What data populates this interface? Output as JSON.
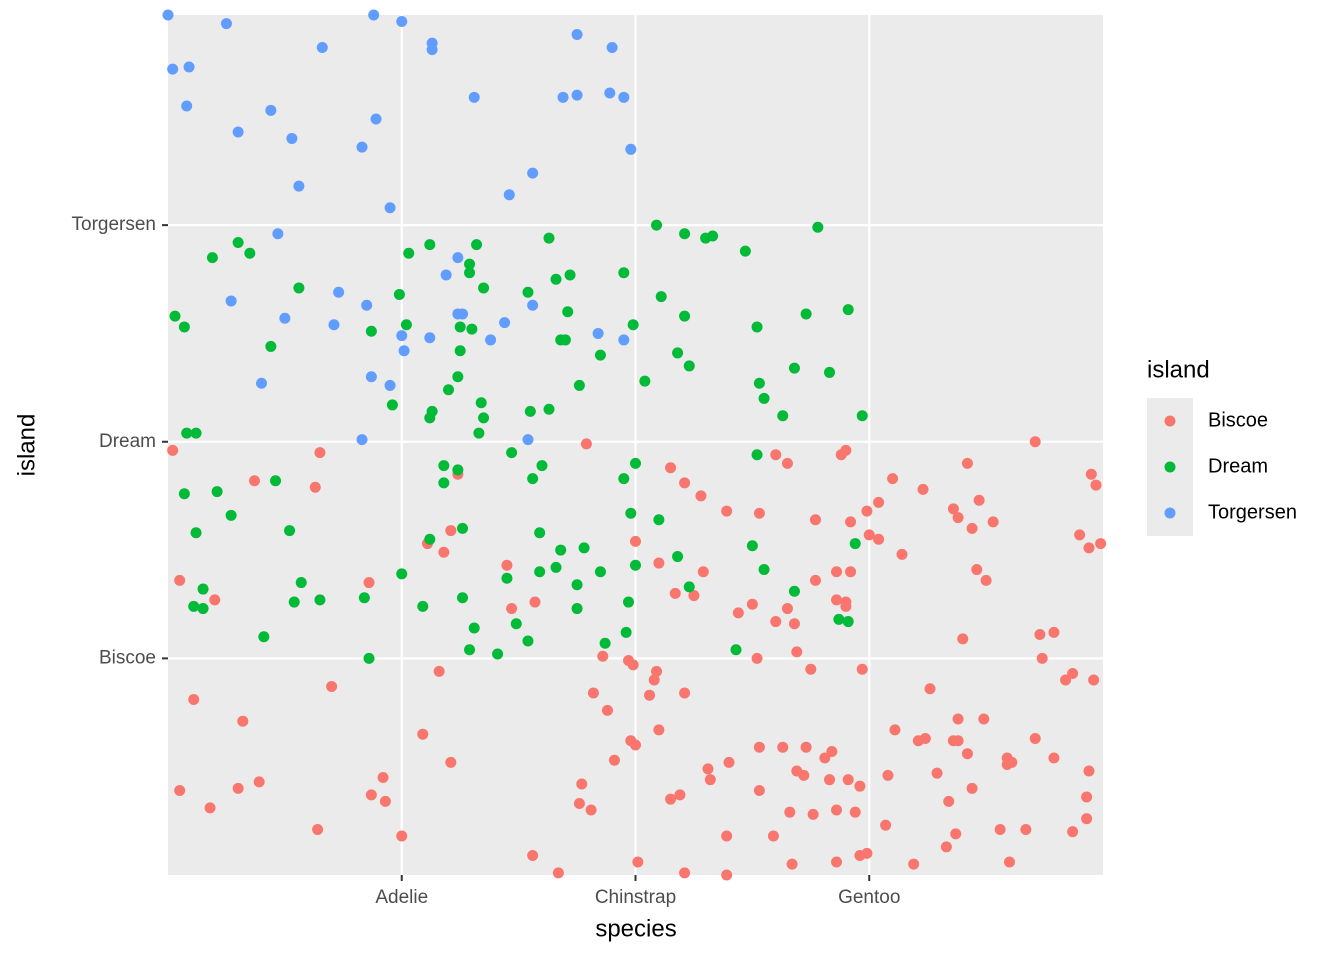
{
  "chart_data": {
    "type": "scatter",
    "x_label": "species",
    "y_label": "island",
    "xlim": [
      0,
      4
    ],
    "ylim": [
      0,
      3.97
    ],
    "xticks": [
      {
        "value": 1,
        "label": "Adelie"
      },
      {
        "value": 2,
        "label": "Chinstrap"
      },
      {
        "value": 3,
        "label": "Gentoo"
      }
    ],
    "yticks": [
      {
        "value": 1,
        "label": "Biscoe"
      },
      {
        "value": 2,
        "label": "Dream"
      },
      {
        "value": 3,
        "label": "Torgersen"
      }
    ],
    "grid": true,
    "legend_title": "island",
    "legend_position": "right",
    "series": [
      {
        "name": "Biscoe",
        "color": "#F8766D",
        "x": [
          3.71,
          0.02,
          0.65,
          1.79,
          2.9,
          2.88,
          2.6,
          2.65,
          2.15,
          3.42,
          3.95,
          3.97,
          0.37,
          0.63,
          1.24,
          2.21,
          3.1,
          3.23,
          2.28,
          3.47,
          3.04,
          3.36,
          2.39,
          2.53,
          2.99,
          3.38,
          2.77,
          2.92,
          3.53,
          3.44,
          1.21,
          3.0,
          3.04,
          1.11,
          1.18,
          3.9,
          3.94,
          3.99,
          3.14,
          2.0,
          2.1,
          1.45,
          2.29,
          3.46,
          3.5,
          2.86,
          2.92,
          0.05,
          0.86,
          2.77,
          2.17,
          2.25,
          2.5,
          2.86,
          2.9,
          2.9,
          0.2,
          1.57,
          1.47,
          2.44,
          2.65,
          2.6,
          2.68,
          3.4,
          3.73,
          3.79,
          1.86,
          1.97,
          1.99,
          2.52,
          2.69,
          3.74,
          2.75,
          2.97,
          1.16,
          2.09,
          3.87,
          3.84,
          3.96,
          2.08,
          0.7,
          3.26,
          1.82,
          2.21,
          2.06,
          0.11,
          1.88,
          3.38,
          3.49,
          0.32,
          3.11,
          2.1,
          1.09,
          3.21,
          3.24,
          3.36,
          3.38,
          3.71,
          1.98,
          2.0,
          2.53,
          2.63,
          2.73,
          2.84,
          3.42,
          2.81,
          3.59,
          3.61,
          3.59,
          3.79,
          1.21,
          1.91,
          2.4,
          2.31,
          2.69,
          2.72,
          3.08,
          3.29,
          3.94,
          2.91,
          2.83,
          0.92,
          1.77,
          2.32,
          0.05,
          0.3,
          0.39,
          2.96,
          3.44,
          2.53,
          0.87,
          0.93,
          2.19,
          2.15,
          3.93,
          0.18,
          1.76,
          1.81,
          2.66,
          2.76,
          2.86,
          2.94,
          3.34,
          3.93,
          3.07,
          0.64,
          1.0,
          2.39,
          2.59,
          3.37,
          3.56,
          3.67,
          3.87,
          3.33,
          1.56,
          2.96,
          2.99,
          3.6,
          2.01,
          2.67,
          2.86,
          3.19,
          1.67,
          2.21,
          2.39
        ],
        "y": [
          2.0,
          1.96,
          1.95,
          1.99,
          1.96,
          1.94,
          1.94,
          1.9,
          1.88,
          1.9,
          1.85,
          1.8,
          1.82,
          1.79,
          1.85,
          1.81,
          1.83,
          1.78,
          1.75,
          1.73,
          1.72,
          1.69,
          1.68,
          1.67,
          1.68,
          1.65,
          1.64,
          1.63,
          1.63,
          1.6,
          1.59,
          1.57,
          1.55,
          1.53,
          1.49,
          1.57,
          1.51,
          1.53,
          1.48,
          1.54,
          1.44,
          1.43,
          1.4,
          1.41,
          1.36,
          1.4,
          1.4,
          1.36,
          1.35,
          1.36,
          1.3,
          1.29,
          1.25,
          1.27,
          1.26,
          1.24,
          1.27,
          1.26,
          1.23,
          1.21,
          1.23,
          1.17,
          1.16,
          1.09,
          1.11,
          1.12,
          1.01,
          0.99,
          0.97,
          1.0,
          1.03,
          1.0,
          0.95,
          0.95,
          0.94,
          0.94,
          0.93,
          0.9,
          0.9,
          0.9,
          0.87,
          0.86,
          0.84,
          0.84,
          0.83,
          0.81,
          0.76,
          0.72,
          0.72,
          0.71,
          0.67,
          0.67,
          0.65,
          0.62,
          0.63,
          0.62,
          0.62,
          0.63,
          0.62,
          0.6,
          0.59,
          0.59,
          0.59,
          0.57,
          0.56,
          0.54,
          0.54,
          0.52,
          0.51,
          0.54,
          0.52,
          0.53,
          0.52,
          0.49,
          0.48,
          0.46,
          0.46,
          0.47,
          0.48,
          0.44,
          0.44,
          0.45,
          0.42,
          0.44,
          0.39,
          0.4,
          0.43,
          0.41,
          0.4,
          0.39,
          0.37,
          0.34,
          0.37,
          0.35,
          0.36,
          0.31,
          0.33,
          0.3,
          0.29,
          0.28,
          0.3,
          0.29,
          0.34,
          0.26,
          0.23,
          0.21,
          0.18,
          0.18,
          0.18,
          0.19,
          0.21,
          0.21,
          0.2,
          0.13,
          0.09,
          0.09,
          0.1,
          0.06,
          0.06,
          0.05,
          0.06,
          0.05,
          0.01,
          0.01,
          0.0
        ]
      },
      {
        "name": "Dream",
        "color": "#00BA38",
        "x": [
          2.09,
          2.21,
          2.3,
          2.33,
          2.78,
          1.63,
          1.32,
          1.12,
          1.03,
          0.3,
          0.35,
          0.19,
          1.29,
          1.29,
          1.66,
          1.72,
          1.95,
          2.47,
          0.56,
          1.35,
          0.99,
          1.54,
          2.11,
          0.03,
          0.07,
          1.71,
          2.21,
          2.73,
          2.91,
          1.25,
          1.3,
          1.02,
          0.87,
          1.99,
          2.52,
          1.68,
          1.7,
          0.44,
          1.25,
          1.85,
          2.18,
          2.23,
          2.68,
          2.83,
          1.24,
          1.76,
          2.04,
          2.53,
          1.2,
          2.55,
          0.96,
          1.34,
          1.13,
          1.12,
          1.35,
          1.55,
          1.63,
          2.63,
          2.97,
          0.08,
          0.12,
          1.33,
          1.47,
          2.52,
          2.0,
          1.18,
          1.24,
          1.6,
          0.07,
          0.21,
          0.46,
          1.18,
          1.56,
          1.95,
          0.27,
          1.98,
          2.1,
          0.52,
          1.26,
          1.12,
          1.59,
          0.12,
          1.68,
          1.78,
          2.5,
          2.94,
          2.0,
          2.18,
          1.45,
          1.59,
          1.66,
          1.85,
          2.55,
          1.0,
          0.57,
          0.15,
          1.75,
          2.23,
          2.68,
          0.11,
          0.15,
          0.54,
          0.65,
          0.84,
          1.09,
          1.26,
          1.75,
          1.97,
          2.87,
          2.91,
          1.49,
          1.31,
          0.41,
          1.54,
          1.87,
          1.96,
          1.29,
          1.41,
          2.43,
          0.86
        ],
        "y": [
          3.0,
          2.96,
          2.94,
          2.95,
          2.99,
          2.94,
          2.91,
          2.91,
          2.87,
          2.92,
          2.87,
          2.85,
          2.82,
          2.78,
          2.75,
          2.77,
          2.78,
          2.88,
          2.71,
          2.71,
          2.68,
          2.69,
          2.67,
          2.58,
          2.53,
          2.6,
          2.58,
          2.59,
          2.61,
          2.53,
          2.52,
          2.54,
          2.51,
          2.54,
          2.53,
          2.47,
          2.47,
          2.44,
          2.42,
          2.4,
          2.41,
          2.35,
          2.34,
          2.32,
          2.3,
          2.26,
          2.28,
          2.27,
          2.24,
          2.2,
          2.17,
          2.18,
          2.14,
          2.11,
          2.11,
          2.14,
          2.15,
          2.12,
          2.12,
          2.04,
          2.04,
          2.04,
          1.95,
          1.94,
          1.9,
          1.89,
          1.87,
          1.89,
          1.76,
          1.77,
          1.82,
          1.81,
          1.83,
          1.83,
          1.66,
          1.67,
          1.64,
          1.59,
          1.6,
          1.55,
          1.58,
          1.58,
          1.5,
          1.51,
          1.52,
          1.53,
          1.43,
          1.47,
          1.37,
          1.4,
          1.42,
          1.4,
          1.41,
          1.39,
          1.35,
          1.32,
          1.34,
          1.33,
          1.31,
          1.24,
          1.23,
          1.26,
          1.27,
          1.28,
          1.24,
          1.28,
          1.23,
          1.26,
          1.18,
          1.17,
          1.16,
          1.14,
          1.1,
          1.08,
          1.07,
          1.12,
          1.04,
          1.02,
          1.04,
          1.0
        ]
      },
      {
        "name": "Torgersen",
        "color": "#619CFF",
        "x": [
          0.0,
          0.25,
          0.88,
          1.0,
          1.75,
          1.9,
          0.66,
          1.13,
          1.13,
          0.02,
          0.09,
          0.08,
          0.44,
          1.31,
          1.69,
          1.75,
          1.89,
          1.95,
          0.3,
          0.89,
          0.53,
          0.83,
          1.98,
          0.56,
          1.56,
          1.46,
          0.95,
          0.47,
          1.24,
          1.19,
          0.27,
          0.73,
          0.85,
          1.56,
          0.5,
          0.71,
          1.24,
          1.26,
          1.44,
          1.38,
          1.12,
          1.0,
          1.01,
          1.84,
          1.95,
          0.87,
          0.95,
          0.4,
          0.83,
          1.54
        ],
        "y": [
          3.97,
          3.93,
          3.97,
          3.94,
          3.88,
          3.82,
          3.82,
          3.84,
          3.81,
          3.72,
          3.73,
          3.55,
          3.53,
          3.59,
          3.59,
          3.6,
          3.61,
          3.59,
          3.43,
          3.49,
          3.4,
          3.36,
          3.35,
          3.18,
          3.24,
          3.14,
          3.08,
          2.96,
          2.85,
          2.77,
          2.65,
          2.69,
          2.63,
          2.63,
          2.57,
          2.54,
          2.59,
          2.59,
          2.55,
          2.47,
          2.48,
          2.49,
          2.42,
          2.5,
          2.47,
          2.3,
          2.26,
          2.27,
          2.01,
          2.01
        ]
      }
    ]
  }
}
